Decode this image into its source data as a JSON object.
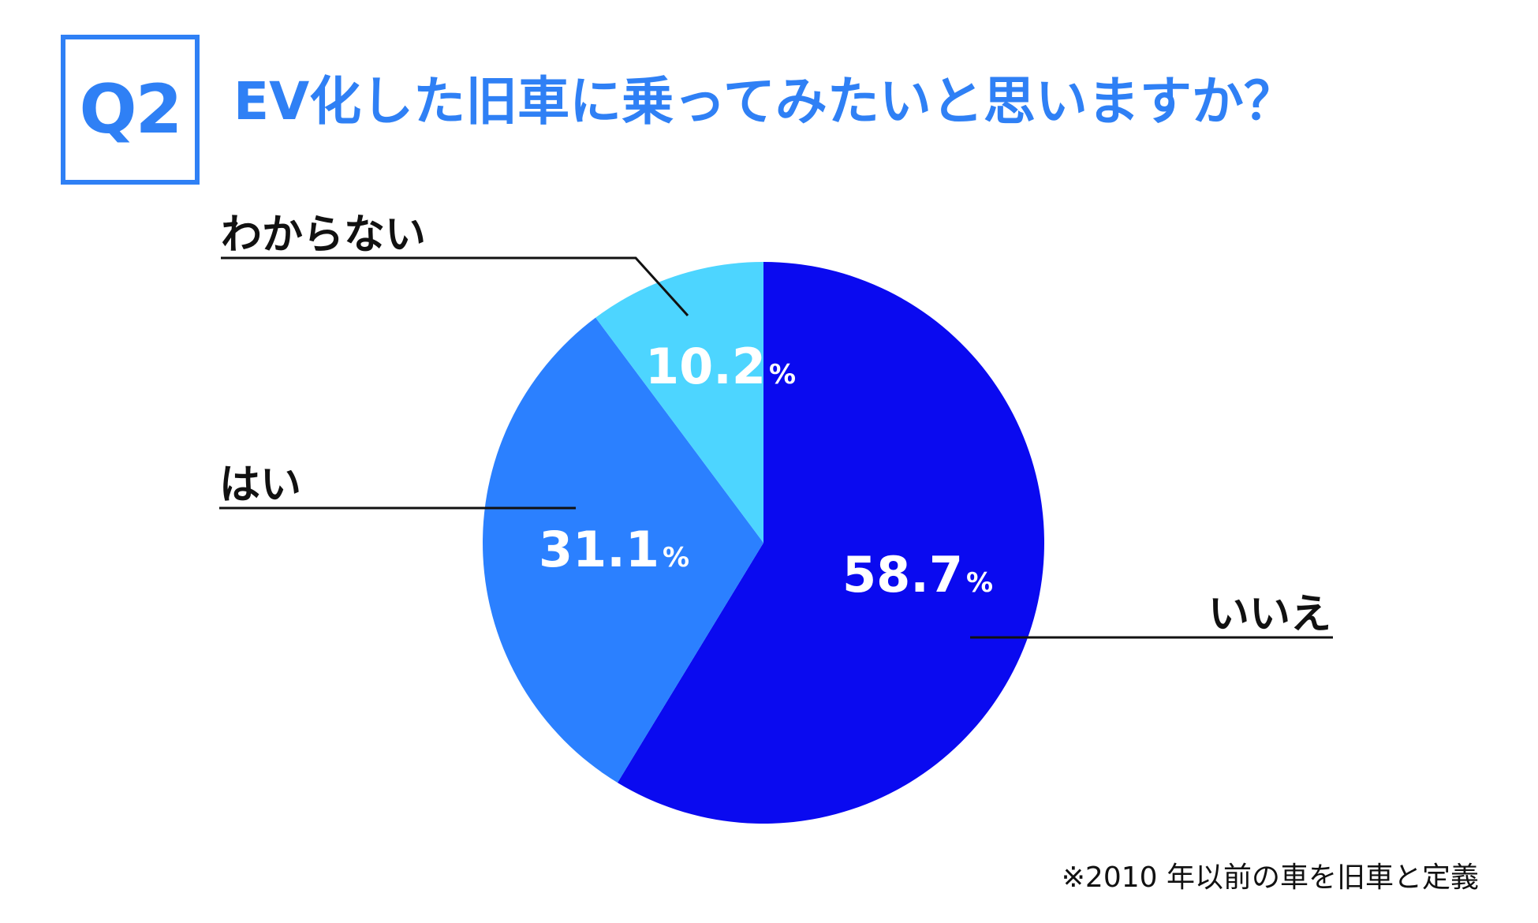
{
  "question_badge": "Q2",
  "title": "EV化した旧車に乗ってみたいと思いますか？",
  "footnote": "※2010 年以前の車を旧車と定義",
  "chart_data": {
    "type": "pie",
    "title": "EV化した旧車に乗ってみたいと思いますか？",
    "start": "12 o'clock, clockwise",
    "slices": [
      {
        "label": "いいえ",
        "value": 58.7,
        "value_label": "58.7",
        "unit": "%",
        "color": "#0a0af0"
      },
      {
        "label": "はい",
        "value": 31.1,
        "value_label": "31.1",
        "unit": "%",
        "color": "#2b80ff"
      },
      {
        "label": "わからない",
        "value": 10.2,
        "value_label": "10.2",
        "unit": "%",
        "color": "#4dd5ff"
      }
    ]
  }
}
